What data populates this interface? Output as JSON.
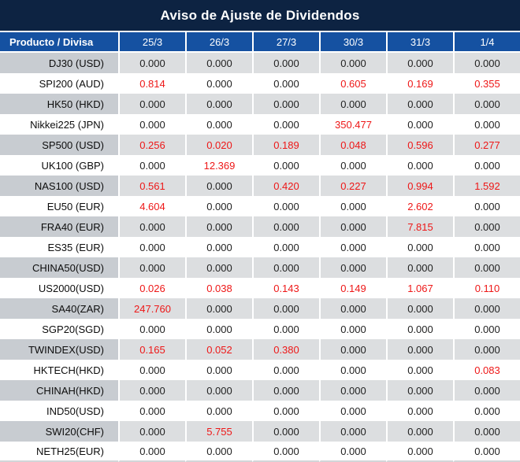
{
  "title": "Aviso de Ajuste de Dividendos",
  "colors": {
    "title_bg": "#0d2342",
    "header_bg": "#1551a1",
    "stripe_value_bg": "#dcdee0",
    "stripe_label_bg": "#c8ccd1",
    "row_bg": "#ffffff",
    "value_red": "#ee1717",
    "value_black": "#1f1f1f",
    "header_text": "#ffffff",
    "bottom_border": "#d2d5d8"
  },
  "table": {
    "product_header": "Producto / Divisa",
    "date_headers": [
      "25/3",
      "26/3",
      "27/3",
      "30/3",
      "31/3",
      "1/4"
    ],
    "rows": [
      {
        "product": "DJ30 (USD)",
        "values": [
          "0.000",
          "0.000",
          "0.000",
          "0.000",
          "0.000",
          "0.000"
        ],
        "red": [
          false,
          false,
          false,
          false,
          false,
          false
        ]
      },
      {
        "product": "SPI200 (AUD)",
        "values": [
          "0.814",
          "0.000",
          "0.000",
          "0.605",
          "0.169",
          "0.355"
        ],
        "red": [
          true,
          false,
          false,
          true,
          true,
          true
        ]
      },
      {
        "product": "HK50 (HKD)",
        "values": [
          "0.000",
          "0.000",
          "0.000",
          "0.000",
          "0.000",
          "0.000"
        ],
        "red": [
          false,
          false,
          false,
          false,
          false,
          false
        ]
      },
      {
        "product": "Nikkei225 (JPN)",
        "values": [
          "0.000",
          "0.000",
          "0.000",
          "350.477",
          "0.000",
          "0.000"
        ],
        "red": [
          false,
          false,
          false,
          true,
          false,
          false
        ]
      },
      {
        "product": "SP500 (USD)",
        "values": [
          "0.256",
          "0.020",
          "0.189",
          "0.048",
          "0.596",
          "0.277"
        ],
        "red": [
          true,
          true,
          true,
          true,
          true,
          true
        ]
      },
      {
        "product": "UK100 (GBP)",
        "values": [
          "0.000",
          "12.369",
          "0.000",
          "0.000",
          "0.000",
          "0.000"
        ],
        "red": [
          false,
          true,
          false,
          false,
          false,
          false
        ]
      },
      {
        "product": "NAS100 (USD)",
        "values": [
          "0.561",
          "0.000",
          "0.420",
          "0.227",
          "0.994",
          "1.592"
        ],
        "red": [
          true,
          false,
          true,
          true,
          true,
          true
        ]
      },
      {
        "product": "EU50 (EUR)",
        "values": [
          "4.604",
          "0.000",
          "0.000",
          "0.000",
          "2.602",
          "0.000"
        ],
        "red": [
          true,
          false,
          false,
          false,
          true,
          false
        ]
      },
      {
        "product": "FRA40 (EUR)",
        "values": [
          "0.000",
          "0.000",
          "0.000",
          "0.000",
          "7.815",
          "0.000"
        ],
        "red": [
          false,
          false,
          false,
          false,
          true,
          false
        ]
      },
      {
        "product": "ES35 (EUR)",
        "values": [
          "0.000",
          "0.000",
          "0.000",
          "0.000",
          "0.000",
          "0.000"
        ],
        "red": [
          false,
          false,
          false,
          false,
          false,
          false
        ]
      },
      {
        "product": "CHINA50(USD)",
        "values": [
          "0.000",
          "0.000",
          "0.000",
          "0.000",
          "0.000",
          "0.000"
        ],
        "red": [
          false,
          false,
          false,
          false,
          false,
          false
        ]
      },
      {
        "product": "US2000(USD)",
        "values": [
          "0.026",
          "0.038",
          "0.143",
          "0.149",
          "1.067",
          "0.110"
        ],
        "red": [
          true,
          true,
          true,
          true,
          true,
          true
        ]
      },
      {
        "product": "SA40(ZAR)",
        "values": [
          "247.760",
          "0.000",
          "0.000",
          "0.000",
          "0.000",
          "0.000"
        ],
        "red": [
          true,
          false,
          false,
          false,
          false,
          false
        ]
      },
      {
        "product": "SGP20(SGD)",
        "values": [
          "0.000",
          "0.000",
          "0.000",
          "0.000",
          "0.000",
          "0.000"
        ],
        "red": [
          false,
          false,
          false,
          false,
          false,
          false
        ]
      },
      {
        "product": "TWINDEX(USD)",
        "values": [
          "0.165",
          "0.052",
          "0.380",
          "0.000",
          "0.000",
          "0.000"
        ],
        "red": [
          true,
          true,
          true,
          false,
          false,
          false
        ]
      },
      {
        "product": "HKTECH(HKD)",
        "values": [
          "0.000",
          "0.000",
          "0.000",
          "0.000",
          "0.000",
          "0.083"
        ],
        "red": [
          false,
          false,
          false,
          false,
          false,
          true
        ]
      },
      {
        "product": "CHINAH(HKD)",
        "values": [
          "0.000",
          "0.000",
          "0.000",
          "0.000",
          "0.000",
          "0.000"
        ],
        "red": [
          false,
          false,
          false,
          false,
          false,
          false
        ]
      },
      {
        "product": "IND50(USD)",
        "values": [
          "0.000",
          "0.000",
          "0.000",
          "0.000",
          "0.000",
          "0.000"
        ],
        "red": [
          false,
          false,
          false,
          false,
          false,
          false
        ]
      },
      {
        "product": "SWI20(CHF)",
        "values": [
          "0.000",
          "5.755",
          "0.000",
          "0.000",
          "0.000",
          "0.000"
        ],
        "red": [
          false,
          true,
          false,
          false,
          false,
          false
        ]
      },
      {
        "product": "NETH25(EUR)",
        "values": [
          "0.000",
          "0.000",
          "0.000",
          "0.000",
          "0.000",
          "0.000"
        ],
        "red": [
          false,
          false,
          false,
          false,
          false,
          false
        ]
      }
    ]
  }
}
